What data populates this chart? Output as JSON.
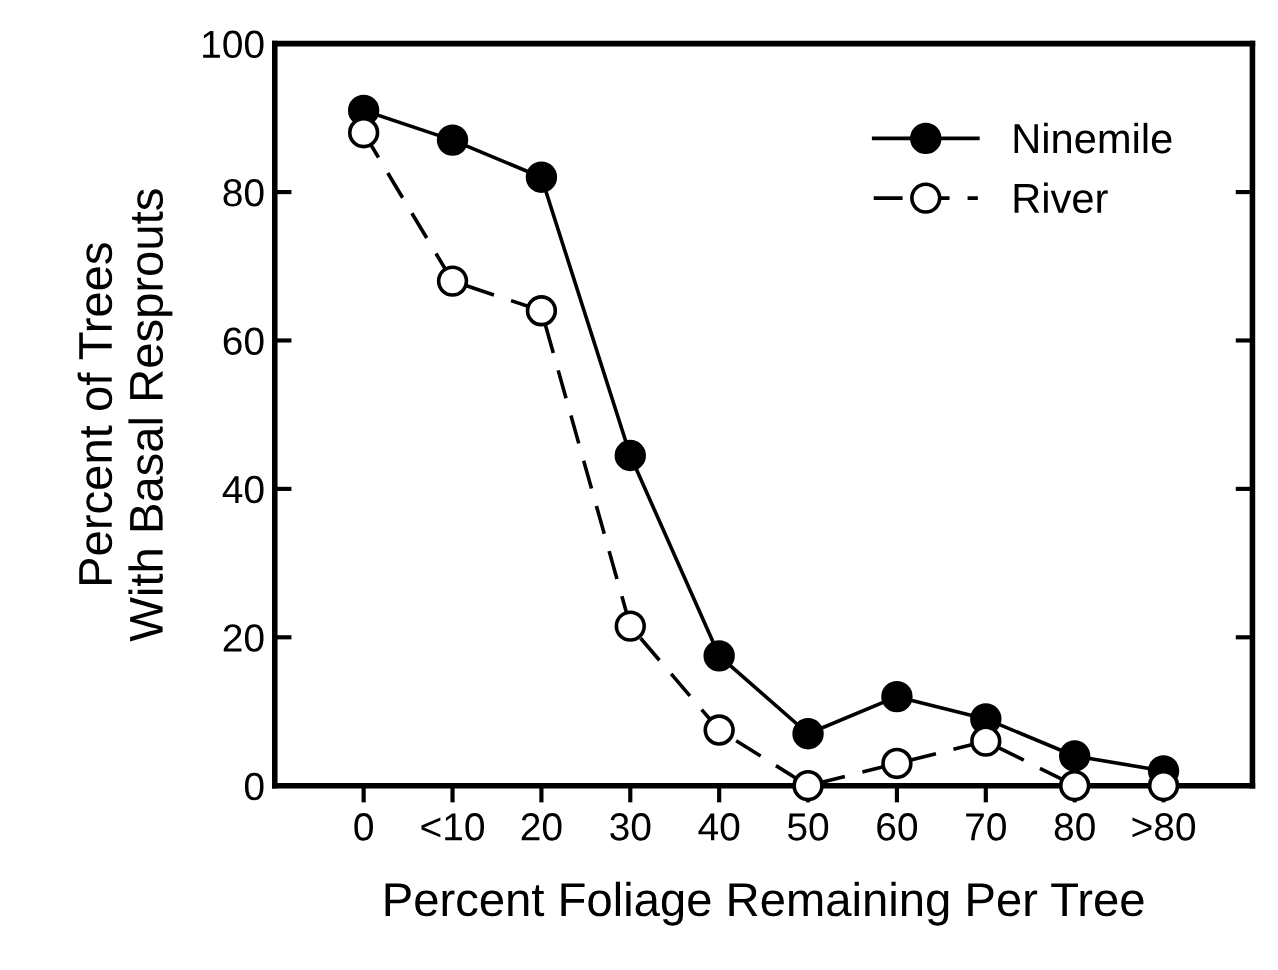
{
  "chart_data": {
    "type": "line",
    "xlabel": "Percent Foliage Remaining Per Tree",
    "ylabel": "Percent of Trees\nWith Basal Resprouts",
    "categories": [
      "0",
      "<10",
      "20",
      "30",
      "40",
      "50",
      "60",
      "70",
      "80",
      ">80"
    ],
    "series": [
      {
        "name": "Ninemile",
        "color": "#000000",
        "line_style": "solid",
        "values": [
          91,
          87,
          82,
          44.5,
          17.5,
          7,
          12,
          9,
          4,
          2
        ]
      },
      {
        "name": "River",
        "color": "#000000",
        "line_style": "dashed",
        "values": [
          88,
          68,
          64,
          21.5,
          7.5,
          0,
          3,
          6,
          0,
          0
        ]
      }
    ],
    "marker": "circle",
    "ylim": [
      0,
      100
    ],
    "yticks": [
      0,
      20,
      40,
      60,
      80,
      100
    ],
    "grid": false,
    "legend": "top right"
  }
}
